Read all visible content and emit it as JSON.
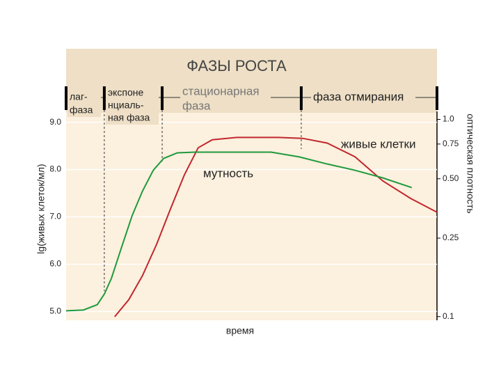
{
  "chart_data": {
    "type": "line",
    "title": "ФАЗЫ РОСТА",
    "y_label": "lg(живых клеток/мл)",
    "y2_label": "оптическая плотность",
    "x_label": "время",
    "xlim": [
      0,
      100
    ],
    "ylim": [
      4.8,
      9.2
    ],
    "yticks": [
      {
        "value": 5,
        "label": "5.0"
      },
      {
        "value": 6,
        "label": "6.0"
      },
      {
        "value": 7,
        "label": "7.0"
      },
      {
        "value": 8,
        "label": "8.0"
      },
      {
        "value": 9,
        "label": "9.0"
      }
    ],
    "y2lim": [
      0.095,
      1.08
    ],
    "y2_log": true,
    "y2ticks": [
      {
        "value": 0.1,
        "label": "0.1"
      },
      0.25,
      {
        "value": 0.5,
        "label": "0.50"
      },
      0.75,
      {
        "value": 1,
        "label": "1.0"
      }
    ],
    "grid": true,
    "phase_boundaries": [
      0,
      10.3,
      25.9,
      63.4,
      100
    ],
    "phases": [
      {
        "lines": [
          "лаг-",
          "фаза"
        ]
      },
      {
        "lines": [
          "экспоне",
          "нциаль-",
          "ная фаза"
        ]
      },
      {
        "lines": [
          "стационарная",
          "фаза"
        ]
      },
      {
        "lines": [
          "фаза отмирания"
        ]
      }
    ],
    "series": [
      {
        "name": "живые клетки",
        "color": "#c0272d",
        "x": [
          13.1,
          16.9,
          20.6,
          24.4,
          28.1,
          31.9,
          35.6,
          39.4,
          46,
          57.2,
          63.8,
          70.4,
          77.9,
          85.4,
          92.9,
          100
        ],
        "values": [
          4.89,
          5.25,
          5.76,
          6.42,
          7.16,
          7.89,
          8.46,
          8.63,
          8.68,
          8.68,
          8.66,
          8.56,
          8.27,
          7.76,
          7.39,
          7.1
        ]
      },
      {
        "name": "мутность",
        "color": "#1e9a3c",
        "axis": "y2",
        "x": [
          0,
          4.7,
          8.4,
          10.3,
          12.2,
          15,
          17.8,
          20.6,
          23.5,
          26.3,
          30,
          34.7,
          44.1,
          55.3,
          62.9,
          70.4,
          77.9,
          85.4,
          93.2
        ],
        "values": [
          0.107,
          0.108,
          0.115,
          0.13,
          0.156,
          0.226,
          0.325,
          0.433,
          0.552,
          0.634,
          0.677,
          0.682,
          0.682,
          0.682,
          0.645,
          0.594,
          0.552,
          0.505,
          0.451
        ]
      }
    ]
  }
}
